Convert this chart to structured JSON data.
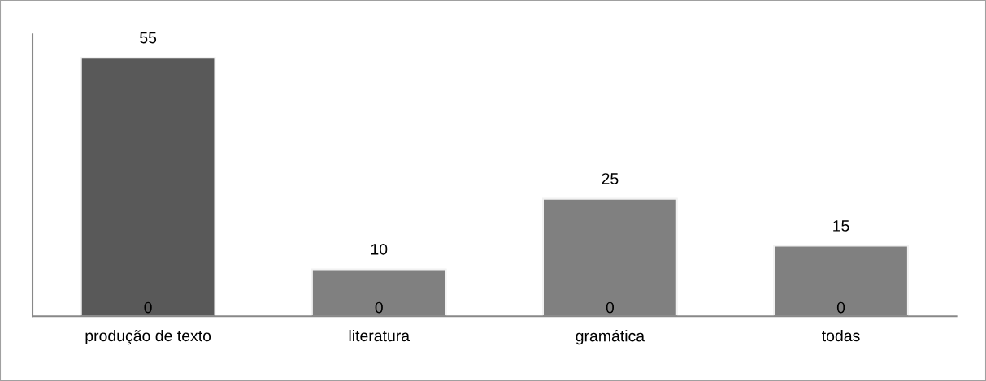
{
  "chart_data": {
    "type": "bar",
    "categories": [
      "produção de texto",
      "literatura",
      "gramática",
      "todas"
    ],
    "series": [
      {
        "values": [
          55,
          10,
          25,
          15
        ],
        "colors": [
          "#595959",
          "#808080",
          "#808080",
          "#808080"
        ]
      },
      {
        "values": [
          0,
          0,
          0,
          0
        ],
        "color": "#808080"
      }
    ],
    "ylim": [
      0,
      60
    ],
    "data_labels": true,
    "tick_labels": "x",
    "grid": false,
    "legend": false
  }
}
